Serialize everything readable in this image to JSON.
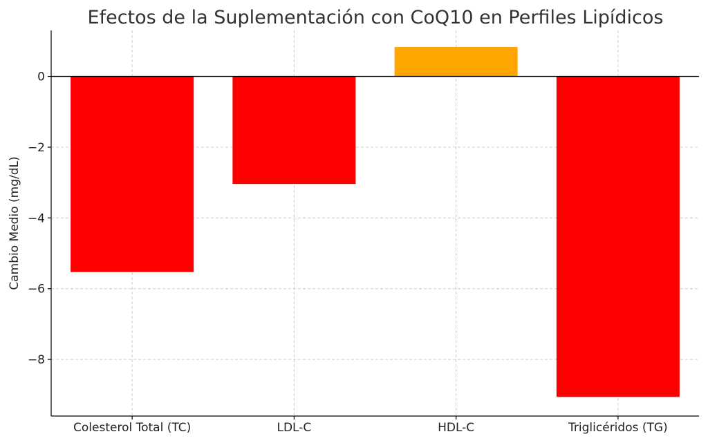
{
  "chart_data": {
    "type": "bar",
    "title": "Efectos de la Suplementación con CoQ10 en Perfiles Lipídicos",
    "xlabel": "",
    "ylabel": "Cambio Medio (mg/dL)",
    "categories": [
      "Colesterol Total (TC)",
      "LDL-C",
      "HDL-C",
      "Triglicéridos (TG)"
    ],
    "values": [
      -5.53,
      -3.04,
      0.83,
      -9.06
    ],
    "bar_colors": [
      "#ff0000",
      "#ff0000",
      "#ffa500",
      "#ff0000"
    ],
    "ylim": [
      -9.6,
      1.3
    ],
    "yticks": [
      0,
      -2,
      -4,
      -6,
      -8
    ],
    "ytick_labels": [
      "0",
      "−2",
      "−4",
      "−6",
      "−8"
    ],
    "grid": true,
    "zero_line": true
  }
}
